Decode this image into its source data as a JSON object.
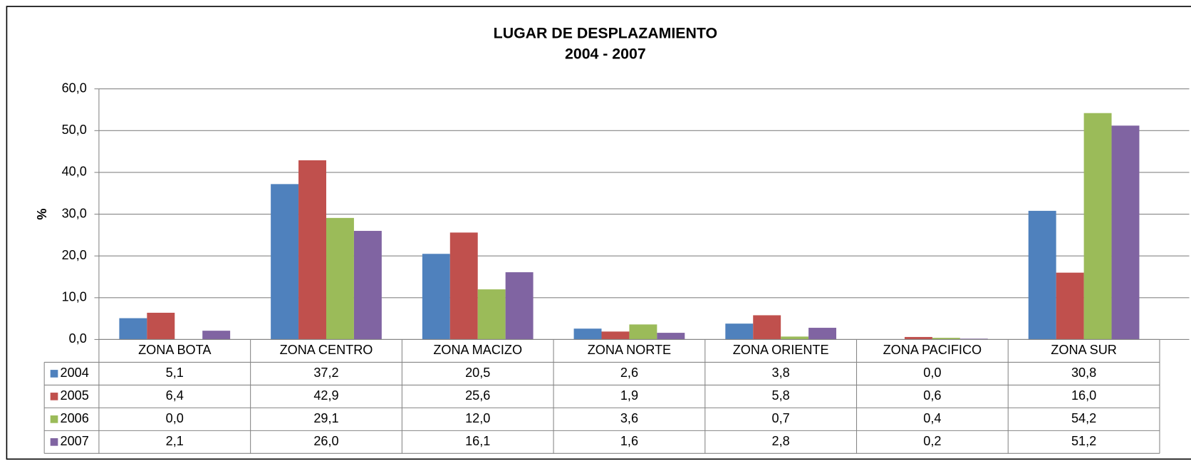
{
  "chart_data": {
    "type": "bar",
    "title": "LUGAR DE DESPLAZAMIENTO",
    "subtitle": "2004 - 2007",
    "y_label": "%",
    "categories": [
      "ZONA BOTA",
      "ZONA CENTRO",
      "ZONA MACIZO",
      "ZONA NORTE",
      "ZONA ORIENTE",
      "ZONA PACIFICO",
      "ZONA SUR"
    ],
    "series": [
      {
        "name": "2004",
        "color": "#4f81bd",
        "values": [
          5.1,
          37.2,
          20.5,
          2.6,
          3.8,
          0.0,
          30.8
        ],
        "value_labels": [
          "5,1",
          "37,2",
          "20,5",
          "2,6",
          "3,8",
          "0,0",
          "30,8"
        ]
      },
      {
        "name": "2005",
        "color": "#c0504d",
        "values": [
          6.4,
          42.9,
          25.6,
          1.9,
          5.8,
          0.6,
          16.0
        ],
        "value_labels": [
          "6,4",
          "42,9",
          "25,6",
          "1,9",
          "5,8",
          "0,6",
          "16,0"
        ]
      },
      {
        "name": "2006",
        "color": "#9bbb59",
        "values": [
          0.0,
          29.1,
          12.0,
          3.6,
          0.7,
          0.4,
          54.2
        ],
        "value_labels": [
          "0,0",
          "29,1",
          "12,0",
          "3,6",
          "0,7",
          "0,4",
          "54,2"
        ]
      },
      {
        "name": "2007",
        "color": "#8064a2",
        "values": [
          2.1,
          26.0,
          16.1,
          1.6,
          2.8,
          0.2,
          51.2
        ],
        "value_labels": [
          "2,1",
          "26,0",
          "16,1",
          "1,6",
          "2,8",
          "0,2",
          "51,2"
        ]
      }
    ],
    "ylim": [
      0,
      60
    ],
    "yticks": [
      {
        "value": 0,
        "label": "0,0"
      },
      {
        "value": 10,
        "label": "10,0"
      },
      {
        "value": 20,
        "label": "20,0"
      },
      {
        "value": 30,
        "label": "30,0"
      },
      {
        "value": 40,
        "label": "40,0"
      },
      {
        "value": 50,
        "label": "50,0"
      },
      {
        "value": 60,
        "label": "60,0"
      }
    ],
    "grid": true
  }
}
